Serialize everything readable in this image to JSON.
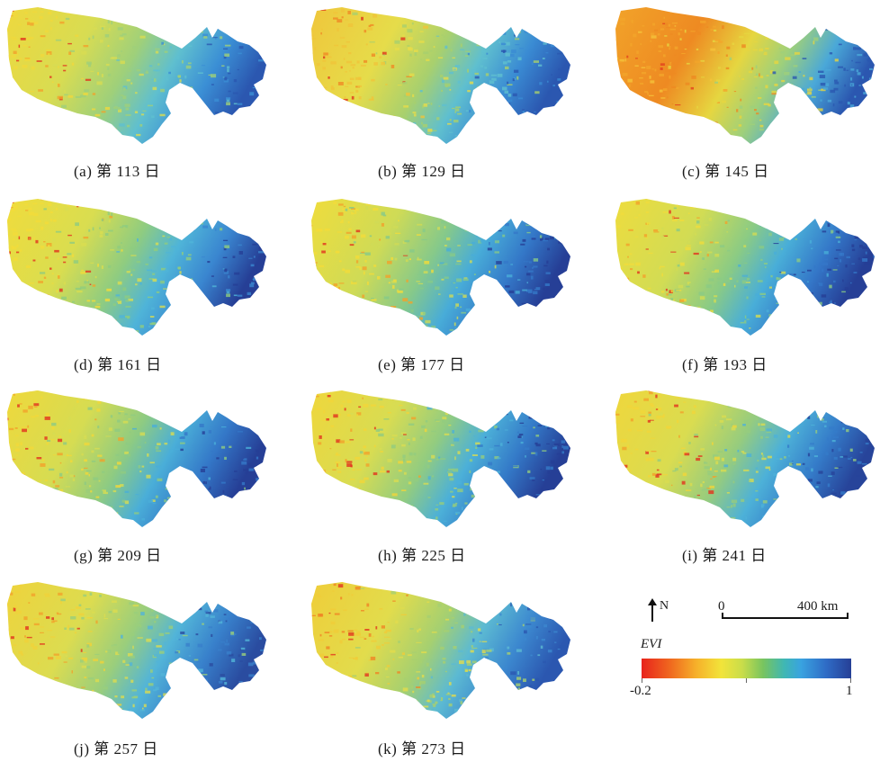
{
  "panels": [
    {
      "caption": "(a) 第 113 日",
      "palette": [
        "#f0d83c",
        "#d8dc52",
        "#9fd07a",
        "#5fbfcf",
        "#3b8fd5",
        "#2b57b0",
        "#e2321e",
        "#f3a12a"
      ]
    },
    {
      "caption": "(b) 第 129 日",
      "palette": [
        "#f0c43a",
        "#e6dc4a",
        "#a8d06e",
        "#5fbfcf",
        "#3a8bd3",
        "#2b57b0",
        "#e0361e",
        "#f08a24"
      ]
    },
    {
      "caption": "(c) 第 145 日",
      "palette": [
        "#f2a52a",
        "#ee8a22",
        "#e6d640",
        "#9fd07a",
        "#4aa8d8",
        "#2b57b0",
        "#e2421e",
        "#f5c23a"
      ]
    },
    {
      "caption": "(d) 第 161 日",
      "palette": [
        "#f2dc3a",
        "#d9dd50",
        "#8fcc80",
        "#4fb4d8",
        "#3a86d0",
        "#263f96",
        "#e2321e",
        "#f3a12a"
      ]
    },
    {
      "caption": "(e) 第 177 日",
      "palette": [
        "#f2dc3a",
        "#cfdb56",
        "#86c98a",
        "#48acd8",
        "#3478c8",
        "#263f96",
        "#e2321e",
        "#f3a12a"
      ]
    },
    {
      "caption": "(f) 第 193 日",
      "palette": [
        "#f0dc3c",
        "#d2dc54",
        "#8bcb84",
        "#49aed8",
        "#3477c8",
        "#263f96",
        "#e2321e",
        "#f3a12a"
      ]
    },
    {
      "caption": "(g) 第 209 日",
      "palette": [
        "#f1d83a",
        "#d6dc52",
        "#8ecb82",
        "#4aaed8",
        "#3478c8",
        "#263f96",
        "#e2321e",
        "#f3a12a"
      ]
    },
    {
      "caption": "(h) 第 225 日",
      "palette": [
        "#f1d63a",
        "#d8dc52",
        "#92cc80",
        "#4cb0d8",
        "#347ac8",
        "#263f96",
        "#e2321e",
        "#f3a12a"
      ]
    },
    {
      "caption": "(i) 第 241 日",
      "palette": [
        "#f1d63a",
        "#dadc50",
        "#96cc7e",
        "#4db1d8",
        "#357cc9",
        "#27449a",
        "#e2321e",
        "#f3a12a"
      ]
    },
    {
      "caption": "(j) 第 257 日",
      "palette": [
        "#f0d23a",
        "#dcdc50",
        "#9ace7c",
        "#52b4d8",
        "#3880cb",
        "#2a4ca0",
        "#e2321e",
        "#f3a12a"
      ]
    },
    {
      "caption": "(k) 第 273 日",
      "palette": [
        "#f0cc38",
        "#e2dc4c",
        "#a6d070",
        "#5cbad2",
        "#3c88cf",
        "#2b57b0",
        "#e2361e",
        "#f08424"
      ]
    }
  ],
  "legend": {
    "north": "N",
    "scale_start": "0",
    "scale_end": "400 km",
    "title": "EVI",
    "min_label": "-0.2",
    "max_label": "1"
  }
}
